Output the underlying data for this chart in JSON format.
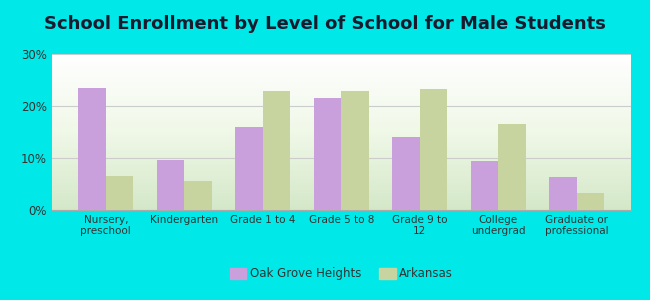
{
  "title": "School Enrollment by Level of School for Male Students",
  "categories": [
    "Nursery,\npreschool",
    "Kindergarten",
    "Grade 1 to 4",
    "Grade 5 to 8",
    "Grade 9 to\n12",
    "College\nundergrad",
    "Graduate or\nprofessional"
  ],
  "oak_grove": [
    23.5,
    9.7,
    16.0,
    21.5,
    14.0,
    9.5,
    6.3
  ],
  "arkansas": [
    6.5,
    5.5,
    22.8,
    22.8,
    23.3,
    16.5,
    3.2
  ],
  "oak_grove_color": "#c9a0dc",
  "arkansas_color": "#c8d4a0",
  "legend_oak_grove": "Oak Grove Heights",
  "legend_arkansas": "Arkansas",
  "ylim": [
    0,
    30
  ],
  "yticks": [
    0,
    10,
    20,
    30
  ],
  "yticklabels": [
    "0%",
    "10%",
    "20%",
    "30%"
  ],
  "background_color": "#00e8e8",
  "title_fontsize": 13,
  "bar_width": 0.35,
  "grid_color": "#cccccc",
  "title_color": "#1a1a2e"
}
